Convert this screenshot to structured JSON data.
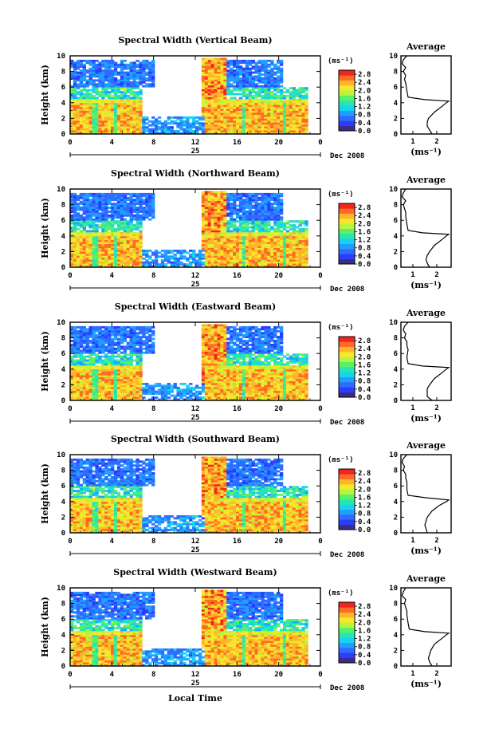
{
  "chart_data": {
    "type": "heatmap",
    "date_label": "Dec 2008",
    "day_label": "25",
    "xlabel": "Local Time",
    "ylabel": "Height (km)",
    "x_ticks": [
      "0",
      "4",
      "8",
      "12",
      "16",
      "20",
      "0"
    ],
    "y_ticks": [
      "0",
      "2",
      "4",
      "6",
      "8",
      "10"
    ],
    "xlim": [
      0,
      24
    ],
    "ylim": [
      0,
      10
    ],
    "colorbar": {
      "unit": "(ms⁻¹)",
      "ticks": [
        "0.0",
        "0.4",
        "0.8",
        "1.2",
        "1.6",
        "2.0",
        "2.4",
        "2.8"
      ],
      "range": [
        0,
        3.0
      ],
      "colors": [
        "#3b2d86",
        "#2a3cff",
        "#2f6bff",
        "#1fa0ff",
        "#17d2f0",
        "#27e6b0",
        "#57f26a",
        "#b8f53a",
        "#f4e82c",
        "#ffb52a",
        "#ff6a25",
        "#f2251e"
      ]
    },
    "average_panel": {
      "title": "Average",
      "xlabel": "(ms⁻¹)",
      "y_ticks": [
        "0",
        "2",
        "4",
        "6",
        "8",
        "10"
      ]
    },
    "panels": [
      {
        "title": "Spectral Width (Vertical Beam)",
        "avg_ticks": [
          "1",
          "2"
        ],
        "avg_xlim": [
          0.5,
          2.6
        ],
        "avg_profile": [
          [
            1.8,
            0
          ],
          [
            1.7,
            0.5
          ],
          [
            1.6,
            1.0
          ],
          [
            1.6,
            1.5
          ],
          [
            1.65,
            2.0
          ],
          [
            1.9,
            2.8
          ],
          [
            2.2,
            3.5
          ],
          [
            2.4,
            4.0
          ],
          [
            2.5,
            4.2
          ],
          [
            1.5,
            4.4
          ],
          [
            0.8,
            4.7
          ],
          [
            0.75,
            5.5
          ],
          [
            0.7,
            6.5
          ],
          [
            0.65,
            7.0
          ],
          [
            0.7,
            7.5
          ],
          [
            0.6,
            8.0
          ],
          [
            0.7,
            8.5
          ],
          [
            0.55,
            9.0
          ],
          [
            0.6,
            9.5
          ],
          [
            0.75,
            10
          ]
        ]
      },
      {
        "title": "Spectral Width (Northward Beam)",
        "avg_ticks": [
          "1",
          "2"
        ],
        "avg_xlim": [
          0.5,
          2.6
        ],
        "avg_profile": [
          [
            1.7,
            0
          ],
          [
            1.6,
            0.5
          ],
          [
            1.55,
            1.0
          ],
          [
            1.6,
            1.5
          ],
          [
            1.7,
            2.0
          ],
          [
            1.9,
            2.8
          ],
          [
            2.2,
            3.5
          ],
          [
            2.4,
            4.0
          ],
          [
            2.5,
            4.2
          ],
          [
            1.4,
            4.4
          ],
          [
            0.8,
            4.7
          ],
          [
            0.75,
            5.5
          ],
          [
            0.7,
            6.5
          ],
          [
            0.7,
            7.0
          ],
          [
            0.65,
            7.5
          ],
          [
            0.6,
            8.0
          ],
          [
            0.7,
            8.5
          ],
          [
            0.55,
            9.0
          ],
          [
            0.6,
            9.5
          ],
          [
            0.7,
            10
          ]
        ]
      },
      {
        "title": "Spectral Width (Eastward Beam)",
        "avg_ticks": [
          "1",
          "2"
        ],
        "avg_xlim": [
          0.5,
          2.6
        ],
        "avg_profile": [
          [
            1.8,
            0
          ],
          [
            1.6,
            0.5
          ],
          [
            1.6,
            1.0
          ],
          [
            1.6,
            1.5
          ],
          [
            1.7,
            2.0
          ],
          [
            1.9,
            2.8
          ],
          [
            2.2,
            3.5
          ],
          [
            2.4,
            4.0
          ],
          [
            2.5,
            4.2
          ],
          [
            1.4,
            4.4
          ],
          [
            0.8,
            4.7
          ],
          [
            0.75,
            5.5
          ],
          [
            0.8,
            6.5
          ],
          [
            0.75,
            7.0
          ],
          [
            0.75,
            7.5
          ],
          [
            0.65,
            8.0
          ],
          [
            0.7,
            8.5
          ],
          [
            0.6,
            9.0
          ],
          [
            0.65,
            9.5
          ],
          [
            0.8,
            10
          ]
        ]
      },
      {
        "title": "Spectral Width (Southward Beam)",
        "avg_ticks": [
          "1",
          "2"
        ],
        "avg_xlim": [
          0.5,
          2.6
        ],
        "avg_profile": [
          [
            1.6,
            0
          ],
          [
            1.55,
            0.5
          ],
          [
            1.5,
            1.0
          ],
          [
            1.55,
            1.5
          ],
          [
            1.6,
            2.0
          ],
          [
            1.8,
            2.8
          ],
          [
            2.1,
            3.5
          ],
          [
            2.4,
            4.0
          ],
          [
            2.5,
            4.2
          ],
          [
            1.5,
            4.5
          ],
          [
            0.8,
            4.8
          ],
          [
            0.75,
            5.5
          ],
          [
            0.75,
            6.5
          ],
          [
            0.7,
            7.0
          ],
          [
            0.7,
            7.5
          ],
          [
            0.6,
            8.0
          ],
          [
            0.65,
            8.5
          ],
          [
            0.55,
            9.0
          ],
          [
            0.6,
            9.5
          ],
          [
            0.75,
            10
          ]
        ]
      },
      {
        "title": "Spectral Width (Westward Beam)",
        "avg_ticks": [
          "1",
          "2"
        ],
        "avg_xlim": [
          0.5,
          2.6
        ],
        "avg_profile": [
          [
            1.8,
            0
          ],
          [
            1.7,
            0.5
          ],
          [
            1.65,
            1.0
          ],
          [
            1.7,
            1.5
          ],
          [
            1.75,
            2.0
          ],
          [
            1.9,
            2.8
          ],
          [
            2.2,
            3.5
          ],
          [
            2.4,
            4.0
          ],
          [
            2.5,
            4.2
          ],
          [
            1.5,
            4.4
          ],
          [
            0.85,
            4.7
          ],
          [
            0.8,
            5.5
          ],
          [
            0.75,
            6.5
          ],
          [
            0.75,
            7.0
          ],
          [
            0.7,
            7.5
          ],
          [
            0.65,
            8.0
          ],
          [
            0.7,
            8.5
          ],
          [
            0.55,
            9.0
          ],
          [
            0.6,
            9.5
          ],
          [
            0.7,
            10
          ]
        ]
      }
    ]
  }
}
